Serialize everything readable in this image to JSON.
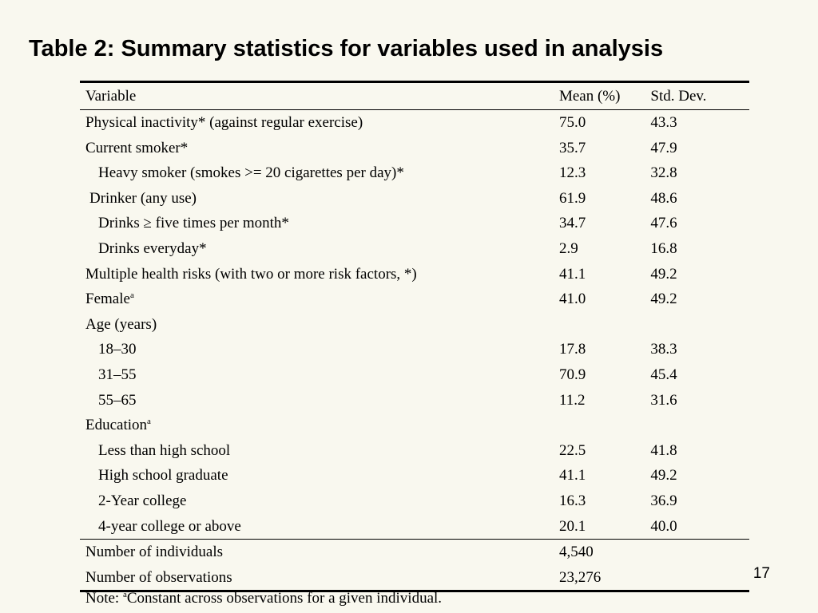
{
  "title": "Table 2: Summary statistics for variables used in analysis",
  "table": {
    "headers": {
      "variable": "Variable",
      "mean": "Mean (%)",
      "sd": "Std. Dev."
    },
    "rows": [
      {
        "label": "Physical inactivity* (against regular exercise)",
        "mean": "75.0",
        "sd": "43.3"
      },
      {
        "label": "Current smoker*",
        "mean": "35.7",
        "sd": "47.9"
      },
      {
        "label": "Heavy smoker (smokes >= 20 cigarettes per day)*",
        "mean": "12.3",
        "sd": "32.8"
      },
      {
        "label": "Drinker (any use)",
        "mean": "61.9",
        "sd": "48.6"
      },
      {
        "label": "Drinks ≥ five times per month*",
        "mean": "34.7",
        "sd": "47.6"
      },
      {
        "label": "Drinks everyday*",
        "mean": "2.9",
        "sd": "16.8"
      },
      {
        "label": "Multiple health risks (with two or more risk factors, *)",
        "mean": "41.1",
        "sd": "49.2"
      },
      {
        "label": "Female",
        "sup": "a",
        "mean": "41.0",
        "sd": "49.2"
      },
      {
        "label": "Age (years)",
        "mean": "",
        "sd": ""
      },
      {
        "label": "18–30",
        "mean": "17.8",
        "sd": "38.3"
      },
      {
        "label": "31–55",
        "mean": "70.9",
        "sd": "45.4"
      },
      {
        "label": "55–65",
        "mean": "11.2",
        "sd": "31.6"
      },
      {
        "label": "Education",
        "sup": "a",
        "mean": "",
        "sd": ""
      },
      {
        "label": "Less than high school",
        "mean": "22.5",
        "sd": "41.8"
      },
      {
        "label": "High school graduate",
        "mean": "41.1",
        "sd": "49.2"
      },
      {
        "label": "2-Year college",
        "mean": "16.3",
        "sd": "36.9"
      },
      {
        "label": "4-year college or above",
        "mean": "20.1",
        "sd": "40.0"
      }
    ],
    "totals": [
      {
        "label": "Number of individuals",
        "mean": "4,540",
        "sd": ""
      },
      {
        "label": "Number of observations",
        "mean": "23,276",
        "sd": ""
      }
    ]
  },
  "note": {
    "prefix": "Note: ",
    "sup": "a",
    "text": "Constant across observations for a given individual."
  },
  "page_number": "17"
}
